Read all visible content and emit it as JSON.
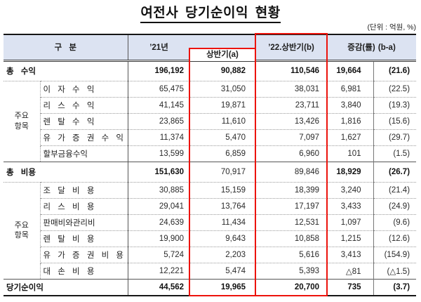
{
  "title": "여전사 당기순이익 현황",
  "unit_note": "(단위 : 억원, %)",
  "colors": {
    "accent_red": "#ec130c",
    "header_bg": "#dce3f2"
  },
  "table": {
    "headers": {
      "category": "구 분",
      "year21": "’21년",
      "half_a": "상반기(a)",
      "half_b": "’22.상반기(b)",
      "change": "증감(률) (b-a)"
    },
    "rows": [
      {
        "type": "total",
        "label": "총 수익",
        "values": [
          "196,192",
          "90,882",
          "110,546",
          "19,664",
          "(21.6)"
        ],
        "bold": [
          1,
          1,
          1,
          1,
          1
        ]
      },
      {
        "type": "item",
        "group": "주요\n항목",
        "group_span": 5,
        "label": "이 자 수 익",
        "values": [
          "65,475",
          "31,050",
          "38,031",
          "6,981",
          "(22.5)"
        ]
      },
      {
        "type": "item",
        "label": "리 스 수 익",
        "values": [
          "41,145",
          "19,871",
          "23,711",
          "3,840",
          "(19.3)"
        ]
      },
      {
        "type": "item",
        "label": "렌 탈 수 익",
        "values": [
          "23,865",
          "11,610",
          "13,426",
          "1,816",
          "(15.6)"
        ]
      },
      {
        "type": "item",
        "label": "유 가 증 권 수 익",
        "values": [
          "11,374",
          "5,470",
          "7,097",
          "1,627",
          "(29.7)"
        ]
      },
      {
        "type": "item",
        "label": "할부금융수익",
        "values": [
          "13,599",
          "6,859",
          "6,960",
          "101",
          "(1.5)"
        ]
      },
      {
        "type": "total",
        "label": "총 비용",
        "values": [
          "151,630",
          "70,917",
          "89,846",
          "18,929",
          "(26.7)"
        ],
        "bold": [
          1,
          0,
          0,
          1,
          1
        ]
      },
      {
        "type": "item",
        "group": "주요\n항목",
        "group_span": 6,
        "label": "조 달 비 용",
        "values": [
          "30,885",
          "15,159",
          "18,399",
          "3,240",
          "(21.4)"
        ]
      },
      {
        "type": "item",
        "label": "리 스 비 용",
        "values": [
          "29,041",
          "13,764",
          "17,197",
          "3,433",
          "(24.9)"
        ]
      },
      {
        "type": "item",
        "label": "판매비와관리비",
        "values": [
          "24,639",
          "11,434",
          "12,531",
          "1,097",
          "(9.6)"
        ]
      },
      {
        "type": "item",
        "label": "렌 탈 비 용",
        "values": [
          "19,900",
          "9,643",
          "10,858",
          "1,215",
          "(12.6)"
        ]
      },
      {
        "type": "item",
        "label": "유 가 증 권 비 용",
        "values": [
          "5,724",
          "2,203",
          "5,616",
          "3,413",
          "(154.9)"
        ]
      },
      {
        "type": "item",
        "label": "대 손 비 용",
        "values": [
          "12,221",
          "5,474",
          "5,393",
          "△81",
          "(△1.5)"
        ]
      },
      {
        "type": "net",
        "label": "당기순이익",
        "values": [
          "44,562",
          "19,965",
          "20,700",
          "735",
          "(3.7)"
        ],
        "bold": [
          1,
          1,
          1,
          1,
          1
        ]
      }
    ]
  }
}
